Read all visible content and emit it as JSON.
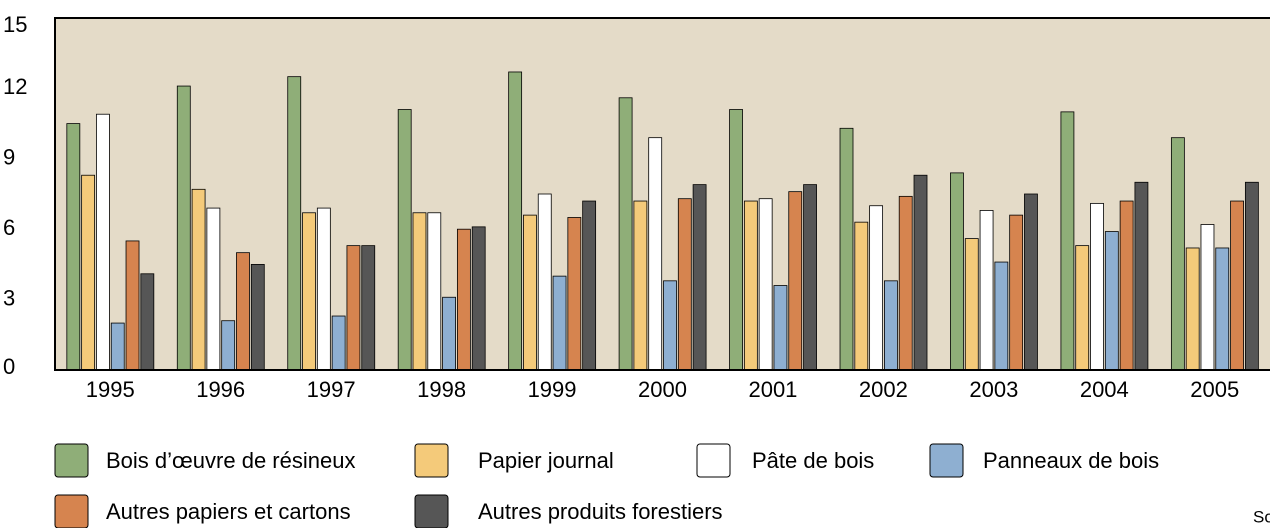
{
  "chart_data": {
    "type": "bar",
    "categories": [
      "1995",
      "1996",
      "1997",
      "1998",
      "1999",
      "2000",
      "2001",
      "2002",
      "2003",
      "2004",
      "2005"
    ],
    "series": [
      {
        "name": "Bois d’œuvre de résineux",
        "color": "#8fae78",
        "values": [
          10.5,
          12.1,
          12.5,
          11.1,
          12.7,
          11.6,
          11.1,
          10.3,
          8.4,
          11.0,
          9.9
        ]
      },
      {
        "name": "Papier journal",
        "color": "#f4ca7a",
        "values": [
          8.3,
          7.7,
          6.7,
          6.7,
          6.6,
          7.2,
          7.2,
          6.3,
          5.6,
          5.3,
          5.2
        ]
      },
      {
        "name": "Pâte de bois",
        "color": "#ffffff",
        "values": [
          10.9,
          6.9,
          6.9,
          6.7,
          7.5,
          9.9,
          7.3,
          7.0,
          6.8,
          7.1,
          6.2
        ]
      },
      {
        "name": "Panneaux de bois",
        "color": "#8eafd1",
        "values": [
          2.0,
          2.1,
          2.3,
          3.1,
          4.0,
          3.8,
          3.6,
          3.8,
          4.6,
          5.9,
          5.2
        ]
      },
      {
        "name": "Autres papiers et cartons",
        "color": "#d6844f",
        "values": [
          5.5,
          5.0,
          5.3,
          6.0,
          6.5,
          7.3,
          7.6,
          7.4,
          6.6,
          7.2,
          7.2
        ]
      },
      {
        "name": "Autres produits forestiers",
        "color": "#565656",
        "values": [
          4.1,
          4.5,
          5.3,
          6.1,
          7.2,
          7.9,
          7.9,
          8.3,
          7.5,
          8.0,
          8.0
        ]
      }
    ],
    "ylim": [
      0,
      15
    ],
    "yticks": [
      0,
      3,
      6,
      9,
      12,
      15
    ],
    "grid": false,
    "source": "Source : Statistique Canada"
  }
}
